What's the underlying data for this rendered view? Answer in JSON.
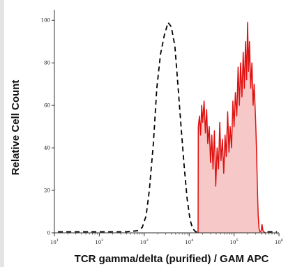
{
  "chart_data": {
    "type": "area",
    "title": "",
    "xlabel": "TCR gamma/delta (purified) / GAM APC",
    "ylabel": "Relative Cell Count",
    "x_scale": "log",
    "xlim": [
      10,
      1000000
    ],
    "ylim": [
      0,
      105
    ],
    "x_tick_labels": [
      {
        "base": "10",
        "exp": "1"
      },
      {
        "base": "10",
        "exp": "2"
      },
      {
        "base": "10",
        "exp": "3"
      },
      {
        "base": "10",
        "exp": "4"
      },
      {
        "base": "10",
        "exp": "5"
      },
      {
        "base": "10",
        "exp": "6"
      }
    ],
    "y_tick_labels": [
      "0",
      "20",
      "40",
      "60",
      "80",
      "100"
    ],
    "grid": false,
    "legend": "none",
    "colors": {
      "control": "#000000",
      "stained_line": "#e01010",
      "stained_fill": "#f7c8c8",
      "axis": "#333333"
    },
    "series": [
      {
        "style": "dashed",
        "points": [
          [
            12,
            0.5
          ],
          [
            100,
            0.5
          ],
          [
            400,
            0.5
          ],
          [
            700,
            1
          ],
          [
            900,
            2.5
          ],
          [
            1100,
            8
          ],
          [
            1300,
            20
          ],
          [
            1600,
            42
          ],
          [
            1900,
            68
          ],
          [
            2300,
            84
          ],
          [
            2800,
            93
          ],
          [
            3400,
            99
          ],
          [
            4000,
            97
          ],
          [
            4800,
            88
          ],
          [
            5600,
            70
          ],
          [
            6600,
            50
          ],
          [
            7700,
            32
          ],
          [
            9000,
            16
          ],
          [
            10500,
            6
          ],
          [
            12000,
            2
          ],
          [
            14000,
            0.5
          ],
          [
            30000,
            0.5
          ],
          [
            100000,
            0.5
          ],
          [
            900000,
            0.5
          ]
        ]
      },
      {
        "style": "solid-filled",
        "points": [
          [
            15800,
            0
          ],
          [
            16000,
            50
          ],
          [
            17000,
            55
          ],
          [
            18000,
            46
          ],
          [
            19000,
            60
          ],
          [
            20000,
            52
          ],
          [
            21500,
            62
          ],
          [
            23000,
            47
          ],
          [
            24500,
            58
          ],
          [
            26000,
            42
          ],
          [
            28000,
            50
          ],
          [
            30000,
            33
          ],
          [
            32000,
            46
          ],
          [
            34000,
            30
          ],
          [
            36500,
            48
          ],
          [
            39000,
            22
          ],
          [
            42000,
            40
          ],
          [
            45000,
            30
          ],
          [
            48000,
            52
          ],
          [
            51000,
            34
          ],
          [
            55000,
            44
          ],
          [
            59000,
            28
          ],
          [
            63000,
            46
          ],
          [
            67000,
            36
          ],
          [
            72000,
            57
          ],
          [
            77000,
            38
          ],
          [
            82000,
            50
          ],
          [
            88000,
            40
          ],
          [
            94000,
            62
          ],
          [
            100000,
            50
          ],
          [
            107000,
            66
          ],
          [
            115000,
            55
          ],
          [
            123000,
            78
          ],
          [
            131000,
            60
          ],
          [
            140000,
            80
          ],
          [
            150000,
            64
          ],
          [
            160000,
            85
          ],
          [
            170000,
            68
          ],
          [
            180000,
            90
          ],
          [
            190000,
            72
          ],
          [
            200000,
            99
          ],
          [
            210000,
            76
          ],
          [
            220000,
            90
          ],
          [
            235000,
            68
          ],
          [
            250000,
            80
          ],
          [
            265000,
            60
          ],
          [
            280000,
            70
          ],
          [
            300000,
            55
          ],
          [
            315000,
            40
          ],
          [
            330000,
            22
          ],
          [
            345000,
            8
          ],
          [
            360000,
            2
          ],
          [
            380000,
            0.5
          ],
          [
            400000,
            1
          ],
          [
            420000,
            4
          ],
          [
            440000,
            1
          ],
          [
            460000,
            0.5
          ],
          [
            500000,
            0
          ]
        ]
      }
    ]
  }
}
